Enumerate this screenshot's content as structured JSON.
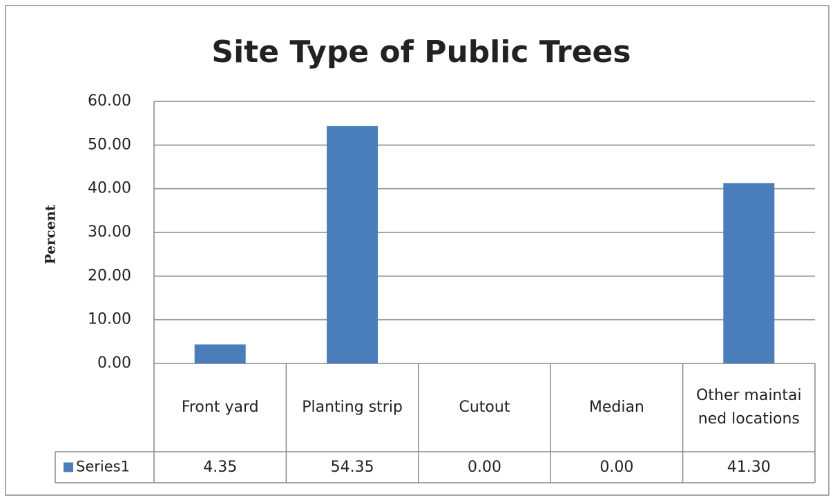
{
  "chart_data": {
    "type": "bar",
    "title": "Site Type of Public Trees",
    "ylabel": "Percent",
    "categories": [
      "Front yard",
      "Planting strip",
      "Cutout",
      "Median",
      "Other maintained locations"
    ],
    "series": [
      {
        "name": "Series1",
        "color": "#4a7ebb",
        "values": [
          4.35,
          54.35,
          0,
          0,
          41.3
        ],
        "value_labels": [
          "4.35",
          "54.35",
          "0.00",
          "0.00",
          "41.30"
        ]
      }
    ],
    "ylim": [
      0,
      60
    ],
    "yticks": [
      {
        "value": 0,
        "label": "0.00"
      },
      {
        "value": 10,
        "label": "10.00"
      },
      {
        "value": 20,
        "label": "20.00"
      },
      {
        "value": 30,
        "label": "30.00"
      },
      {
        "value": 40,
        "label": "40.00"
      },
      {
        "value": 50,
        "label": "50.00"
      },
      {
        "value": 60,
        "label": "60.00"
      }
    ],
    "grid": true,
    "data_table": true
  }
}
